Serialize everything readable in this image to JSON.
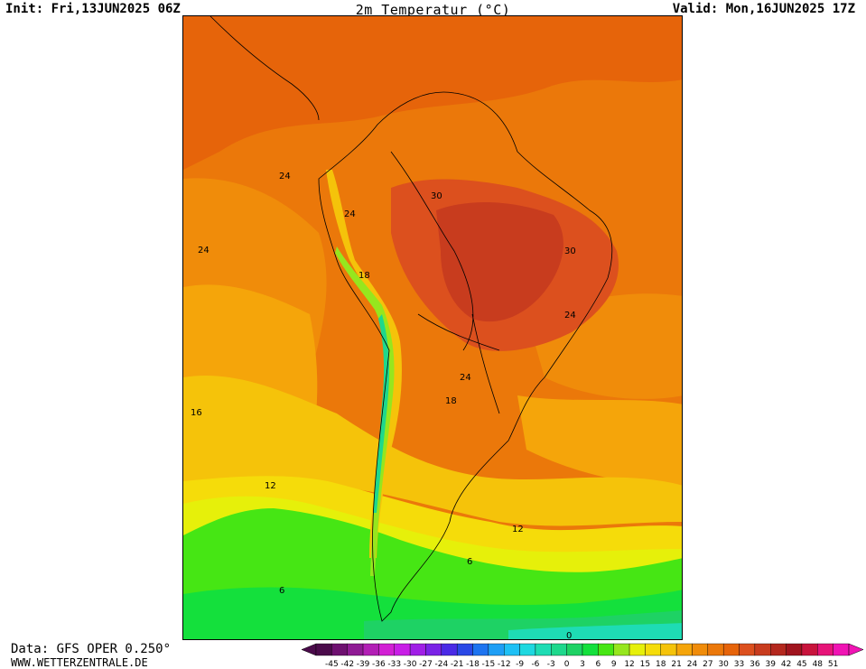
{
  "header": {
    "init": "Init: Fri,13JUN2025 06Z",
    "title": "2m Temperatur (°C)",
    "valid": "Valid: Mon,16JUN2025 17Z"
  },
  "footer": {
    "data_source": "Data: GFS OPER 0.250°",
    "website": "WWW.WETTERZENTRALE.DE"
  },
  "map": {
    "region": "South America",
    "isotherm_labels": [
      "24",
      "24",
      "24",
      "30",
      "30",
      "24",
      "18",
      "24",
      "18",
      "16",
      "12",
      "12",
      "6",
      "6",
      "0"
    ]
  },
  "colorbar": {
    "labels": [
      "-45",
      "-42",
      "-39",
      "-36",
      "-33",
      "-30",
      "-27",
      "-24",
      "-21",
      "-18",
      "-15",
      "-12",
      "-9",
      "-6",
      "-3",
      "0",
      "3",
      "6",
      "9",
      "12",
      "15",
      "18",
      "21",
      "24",
      "27",
      "30",
      "33",
      "36",
      "39",
      "42",
      "45",
      "48",
      "51"
    ],
    "colors": [
      "#4a0a4a",
      "#6e1070",
      "#8f1a94",
      "#b21fb5",
      "#d21fd4",
      "#c81ee6",
      "#a01ee6",
      "#7a22e6",
      "#4a2ae6",
      "#2a48e6",
      "#1e74f0",
      "#1e9ef5",
      "#1ec0f5",
      "#1ed8e0",
      "#1edcb4",
      "#1ed88c",
      "#1ed264",
      "#14e03c",
      "#46e614",
      "#96e61e",
      "#e6f00a",
      "#f5dc0a",
      "#f5c30a",
      "#f5a50a",
      "#f08c0a",
      "#eb780a",
      "#e6640a",
      "#dc501e",
      "#c83c1e",
      "#b4281e",
      "#a0141e",
      "#c8143c",
      "#e61478",
      "#f014b4"
    ]
  }
}
